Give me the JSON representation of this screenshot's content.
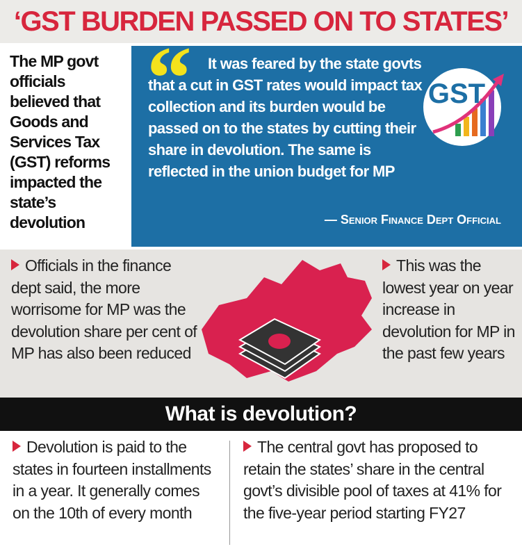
{
  "header": {
    "title": "‘GST BURDEN PASSED ON TO STATES’"
  },
  "intro": "The MP govt officials believed that Goods and Services Tax (GST) reforms impacted the state’s devolution",
  "quote": {
    "text": "It was feared by the state govts that a cut in GST rates would impact tax collection and its burden would be passed on to the states by cutting their share in devolution. The same is reflected in the union budget for MP",
    "attribution": "— Senior Finance Dept Official",
    "logo": "GST"
  },
  "points": [
    "Officials in the finance dept said, the more worrisome for MP was the devolution share per cent of MP has also been reduced",
    "This was the lowest year on year increase in devolution for MP in the past few years"
  ],
  "section": {
    "heading": "What is devolution?"
  },
  "facts": [
    "Devolution is paid to the states in fourteen installments in a year. It generally comes on the 10th of every month",
    "The central govt has proposed to retain the states’ share in the central govt’s divisible pool of taxes at 41% for the five-year period starting FY27"
  ]
}
